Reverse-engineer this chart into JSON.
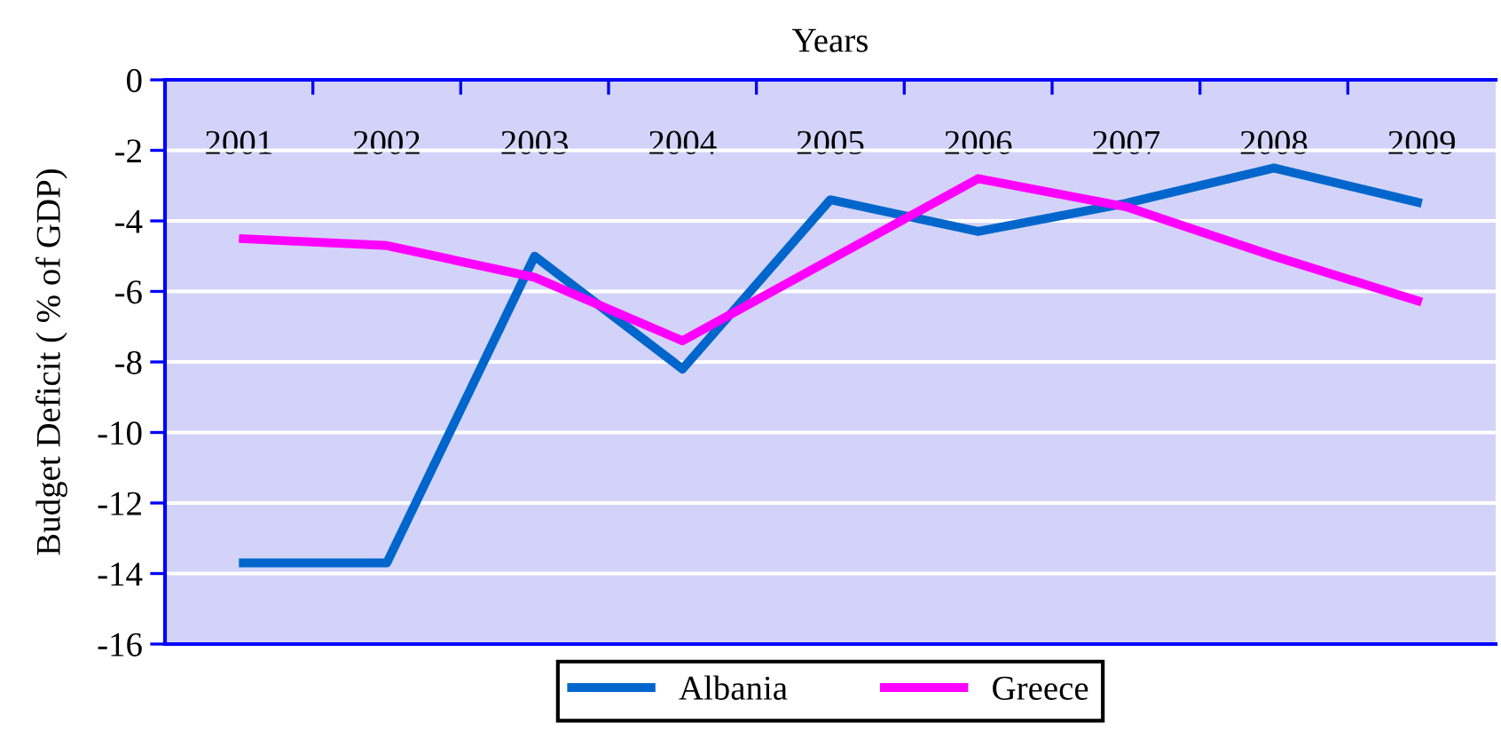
{
  "chart_data": {
    "type": "line",
    "xlabel": "Years",
    "ylabel": "Budget Deficit ( % of GDP)",
    "categories": [
      "2001",
      "2002",
      "2003",
      "2004",
      "2005",
      "2006",
      "2007",
      "2008",
      "2009"
    ],
    "series": [
      {
        "name": "Albania",
        "color": "#0066cc",
        "values": [
          -13.7,
          -13.7,
          -5.0,
          -8.2,
          -3.4,
          -4.3,
          -3.5,
          -2.5,
          -3.5
        ]
      },
      {
        "name": "Greece",
        "color": "#ff00ff",
        "values": [
          -4.5,
          -4.7,
          -5.6,
          -7.4,
          -5.1,
          -2.8,
          -3.6,
          -5.0,
          -6.3
        ]
      }
    ],
    "ylim": [
      -16,
      0
    ],
    "yticks": [
      0,
      -2,
      -4,
      -6,
      -8,
      -10,
      -12,
      -14,
      -16
    ],
    "grid": "y",
    "legend": "bottom",
    "line_style": "solid"
  }
}
